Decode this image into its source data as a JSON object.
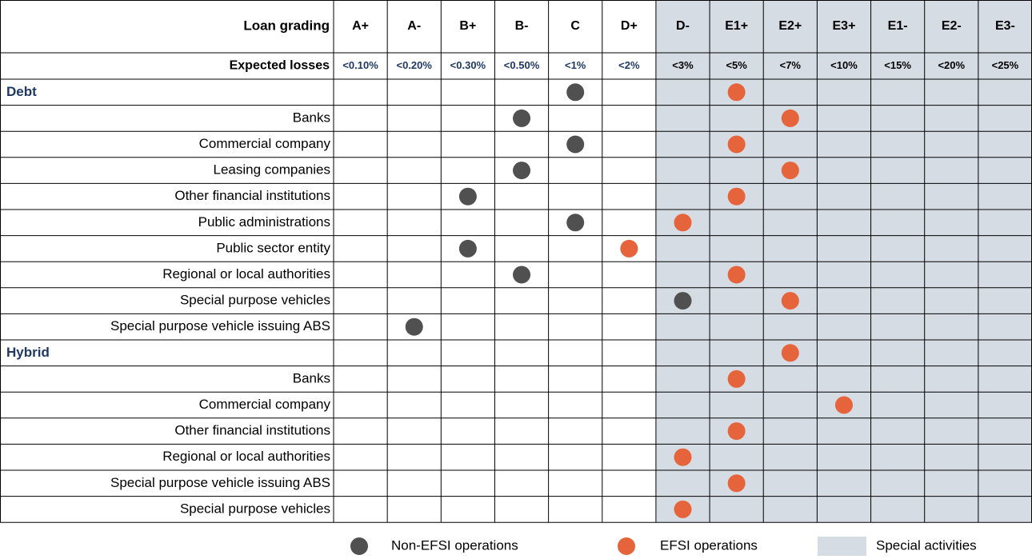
{
  "header": {
    "grade_label": "Loan grading",
    "loss_label": "Expected losses"
  },
  "grades": [
    {
      "grade": "A+",
      "loss": "<0.10%"
    },
    {
      "grade": "A-",
      "loss": "<0.20%"
    },
    {
      "grade": "B+",
      "loss": "<0.30%"
    },
    {
      "grade": "B-",
      "loss": "<0.50%"
    },
    {
      "grade": "C",
      "loss": "<1%"
    },
    {
      "grade": "D+",
      "loss": "<2%"
    },
    {
      "grade": "D-",
      "loss": "<3%",
      "special": true
    },
    {
      "grade": "E1+",
      "loss": "<5%",
      "special": true
    },
    {
      "grade": "E2+",
      "loss": "<7%",
      "special": true
    },
    {
      "grade": "E3+",
      "loss": "<10%",
      "special": true
    },
    {
      "grade": "E1-",
      "loss": "<15%",
      "special": true
    },
    {
      "grade": "E2-",
      "loss": "<20%",
      "special": true
    },
    {
      "grade": "E3-",
      "loss": "<25%",
      "special": true
    }
  ],
  "rows": [
    {
      "label": "Debt",
      "group": true,
      "non_efsi": "C",
      "efsi": "E1+"
    },
    {
      "label": "Banks",
      "non_efsi": "B-",
      "efsi": "E2+"
    },
    {
      "label": "Commercial company",
      "non_efsi": "C",
      "efsi": "E1+"
    },
    {
      "label": "Leasing companies",
      "non_efsi": "B-",
      "efsi": "E2+"
    },
    {
      "label": "Other financial institutions",
      "non_efsi": "B+",
      "efsi": "E1+"
    },
    {
      "label": "Public administrations",
      "non_efsi": "C",
      "efsi": "D-"
    },
    {
      "label": "Public sector entity",
      "non_efsi": "B+",
      "efsi": "D+"
    },
    {
      "label": "Regional or local authorities",
      "non_efsi": "B-",
      "efsi": "E1+"
    },
    {
      "label": "Special purpose vehicles",
      "non_efsi": "D-",
      "efsi": "E2+"
    },
    {
      "label": "Special purpose vehicle issuing ABS",
      "non_efsi": "A-"
    },
    {
      "label": "Hybrid",
      "group": true,
      "efsi": "E2+"
    },
    {
      "label": "Banks",
      "efsi": "E1+"
    },
    {
      "label": "Commercial company",
      "efsi": "E3+"
    },
    {
      "label": "Other financial institutions",
      "efsi": "E1+"
    },
    {
      "label": "Regional or local authorities",
      "efsi": "D-"
    },
    {
      "label": "Special purpose vehicle issuing ABS",
      "efsi": "E1+"
    },
    {
      "label": "Special purpose vehicles",
      "efsi": "D-"
    }
  ],
  "legend": [
    {
      "label": "Non-EFSI operations",
      "color": "#505050"
    },
    {
      "label": "EFSI operations",
      "color": "#e5643b"
    },
    {
      "label": "Special activities",
      "color": "#d6dce4"
    }
  ]
}
